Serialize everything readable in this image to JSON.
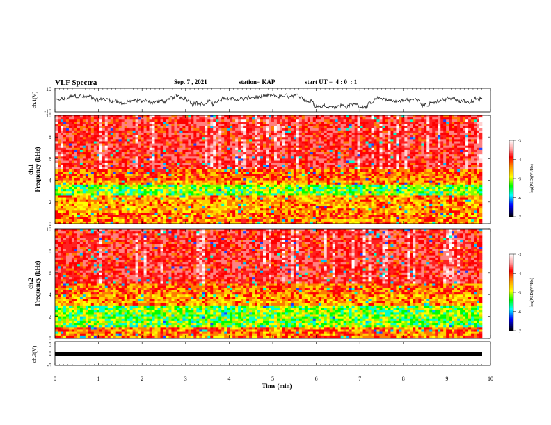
{
  "header": {
    "title": "VLF Spectra",
    "date": "Sep. 7 , 2021",
    "station": "station= KAP",
    "start": "start UT =  4 : 0  : 1"
  },
  "chart_data": [
    {
      "type": "line",
      "panel": "ch1-waveform",
      "ylabel": "ch.1(V)",
      "ylim": [
        -10,
        10
      ],
      "yticks": [
        "10",
        "-10"
      ],
      "xlim": [
        0,
        10
      ],
      "xlabel": "",
      "description_series": [
        {
          "values_approx_range": [
            -6,
            4
          ]
        }
      ]
    },
    {
      "type": "heatmap",
      "panel": "ch1-spectrogram",
      "ylabel": "ch.1\nFrequency (kHz)",
      "ylim": [
        0,
        10
      ],
      "yticks": [
        "0",
        "2",
        "4",
        "6",
        "8",
        "10"
      ],
      "xlim": [
        0,
        10
      ],
      "colorbar": {
        "label": "log(PSD)(V²/Hz)",
        "range": [
          -7,
          -3
        ],
        "ticks": [
          "-3",
          "-4",
          "-5",
          "-6",
          "-7"
        ]
      }
    },
    {
      "type": "heatmap",
      "panel": "ch2-spectrogram",
      "ylabel": "ch.2\nFrequency (kHz)",
      "ylim": [
        0,
        10
      ],
      "yticks": [
        "0",
        "2",
        "4",
        "6",
        "8",
        "10"
      ],
      "xlim": [
        0,
        10
      ],
      "colorbar": {
        "label": "log(PSD)(V²/Hz)",
        "range": [
          -7,
          -3
        ],
        "ticks": [
          "-3",
          "-4",
          "-5",
          "-6",
          "-7"
        ]
      }
    },
    {
      "type": "line",
      "panel": "ch3-waveform",
      "ylabel": "ch.3(V)",
      "ylim": [
        -5,
        5
      ],
      "yticks": [
        "5",
        "0",
        "-5"
      ],
      "xlim": [
        0,
        10
      ],
      "xlabel": "Time (min)",
      "xticks": [
        "0",
        "1",
        "2",
        "3",
        "4",
        "5",
        "6",
        "7",
        "8",
        "9",
        "10"
      ]
    }
  ],
  "labels": {
    "ch1_v": "ch.1(V)",
    "ch1_freq_a": "ch.1",
    "ch1_freq_b": "Frequency (kHz)",
    "ch2_freq_a": "ch.2",
    "ch2_freq_b": "Frequency (kHz)",
    "ch3_v": "ch.3(V)",
    "time": "Time (min)",
    "cbar": "log(PSD)(V²/Hz)"
  }
}
